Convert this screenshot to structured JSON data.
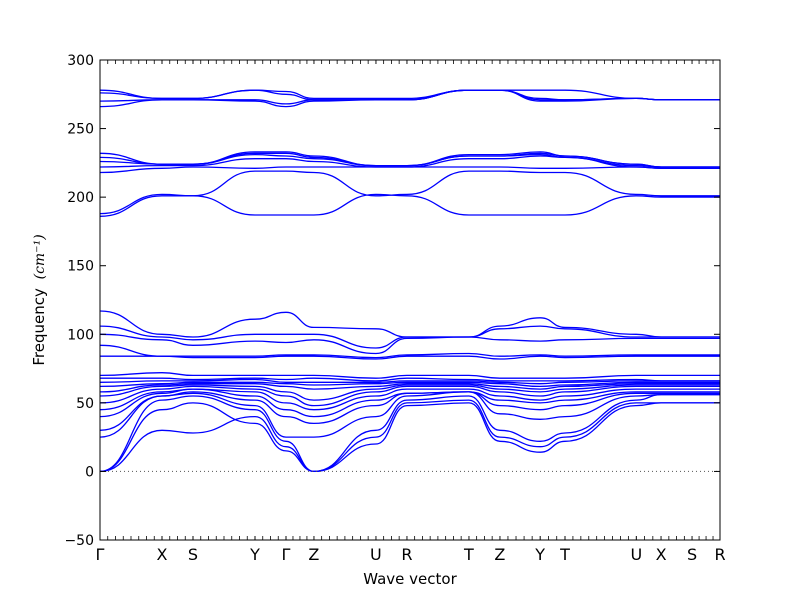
{
  "chart_data": {
    "type": "line",
    "title": "",
    "xlabel": "Wave vector",
    "ylabel": "Frequency",
    "ylabel_unit": "(cm⁻¹)",
    "ylim": [
      -50,
      300
    ],
    "yticks": [
      -50,
      0,
      50,
      100,
      150,
      200,
      250,
      300
    ],
    "grid": false,
    "legend": "none",
    "zero_line": {
      "y": 0,
      "style": "dotted"
    },
    "line_color": "#0000ff",
    "high_symmetry_points": [
      {
        "label": "Γ",
        "x": 0.0
      },
      {
        "label": "X",
        "x": 0.1
      },
      {
        "label": "S",
        "x": 0.15
      },
      {
        "label": "Y",
        "x": 0.25
      },
      {
        "label": "Γ",
        "x": 0.3
      },
      {
        "label": "Z",
        "x": 0.345
      },
      {
        "label": "U",
        "x": 0.445
      },
      {
        "label": "R",
        "x": 0.495
      },
      {
        "label": "T",
        "x": 0.595
      },
      {
        "label": "Z",
        "x": 0.645
      },
      {
        "label": "Y",
        "x": 0.71
      },
      {
        "label": "T",
        "x": 0.75
      },
      {
        "label": "U",
        "x": 0.865
      },
      {
        "label": "X",
        "x": 0.905
      },
      {
        "label": "S",
        "x": 0.955
      },
      {
        "label": "R",
        "x": 1.0
      }
    ],
    "series": [
      {
        "values": [
          0,
          30,
          28,
          40,
          18,
          0,
          20,
          48,
          50,
          22,
          14,
          22,
          48,
          50,
          50,
          50
        ]
      },
      {
        "values": [
          0,
          45,
          50,
          35,
          15,
          0,
          25,
          50,
          52,
          25,
          18,
          25,
          50,
          50,
          50,
          50
        ]
      },
      {
        "values": [
          0,
          52,
          55,
          45,
          22,
          0,
          30,
          52,
          55,
          30,
          22,
          28,
          52,
          56,
          56,
          56
        ]
      },
      {
        "values": [
          25,
          55,
          57,
          48,
          25,
          25,
          40,
          55,
          58,
          42,
          38,
          40,
          55,
          56,
          56,
          56
        ]
      },
      {
        "values": [
          30,
          55,
          58,
          52,
          40,
          35,
          48,
          57,
          58,
          48,
          45,
          48,
          57,
          57,
          57,
          57
        ]
      },
      {
        "values": [
          40,
          57,
          60,
          55,
          45,
          40,
          52,
          57,
          58,
          52,
          50,
          52,
          58,
          58,
          58,
          58
        ]
      },
      {
        "values": [
          45,
          58,
          60,
          58,
          50,
          45,
          55,
          60,
          60,
          55,
          52,
          55,
          60,
          60,
          60,
          60
        ]
      },
      {
        "values": [
          50,
          60,
          62,
          60,
          55,
          48,
          58,
          62,
          62,
          58,
          55,
          58,
          62,
          62,
          62,
          62
        ]
      },
      {
        "values": [
          55,
          62,
          63,
          62,
          58,
          52,
          60,
          63,
          63,
          60,
          58,
          60,
          63,
          63,
          63,
          63
        ]
      },
      {
        "values": [
          58,
          63,
          64,
          64,
          62,
          60,
          62,
          64,
          64,
          62,
          60,
          62,
          64,
          64,
          64,
          64
        ]
      },
      {
        "values": [
          62,
          64,
          65,
          65,
          64,
          63,
          64,
          65,
          65,
          64,
          62,
          63,
          65,
          65,
          65,
          65
        ]
      },
      {
        "values": [
          65,
          66,
          66,
          67,
          65,
          65,
          65,
          66,
          66,
          65,
          64,
          65,
          66,
          66,
          66,
          66
        ]
      },
      {
        "values": [
          68,
          68,
          67,
          68,
          67,
          68,
          66,
          68,
          67,
          66,
          66,
          66,
          67,
          66,
          66,
          66
        ]
      },
      {
        "values": [
          70,
          72,
          70,
          70,
          70,
          70,
          68,
          70,
          70,
          68,
          68,
          68,
          70,
          70,
          70,
          70
        ]
      },
      {
        "values": [
          84,
          84,
          83,
          83,
          84,
          84,
          82,
          84,
          84,
          82,
          84,
          83,
          84,
          84,
          84,
          84
        ]
      },
      {
        "values": [
          92,
          84,
          84,
          84,
          85,
          85,
          83,
          85,
          86,
          84,
          85,
          84,
          85,
          85,
          85,
          85
        ]
      },
      {
        "values": [
          100,
          96,
          92,
          95,
          94,
          96,
          86,
          97,
          98,
          96,
          95,
          96,
          97,
          97,
          97,
          97
        ]
      },
      {
        "values": [
          106,
          98,
          96,
          100,
          100,
          100,
          90,
          98,
          98,
          104,
          106,
          104,
          98,
          98,
          98,
          98
        ]
      },
      {
        "values": [
          117,
          100,
          98,
          111,
          116,
          105,
          104,
          98,
          98,
          106,
          112,
          105,
          100,
          98,
          98,
          98
        ]
      },
      {
        "values": [
          186,
          201,
          201,
          187,
          187,
          187,
          202,
          201,
          187,
          187,
          187,
          187,
          201,
          200,
          200,
          200
        ]
      },
      {
        "values": [
          188,
          202,
          201,
          219,
          219,
          218,
          201,
          202,
          219,
          219,
          218,
          218,
          202,
          201,
          201,
          201
        ]
      },
      {
        "values": [
          218,
          221,
          222,
          221,
          222,
          222,
          222,
          222,
          222,
          222,
          221,
          221,
          222,
          221,
          221,
          221
        ]
      },
      {
        "values": [
          222,
          223,
          223,
          228,
          228,
          226,
          222,
          222,
          228,
          228,
          230,
          229,
          222,
          221,
          221,
          221
        ]
      },
      {
        "values": [
          226,
          224,
          224,
          231,
          230,
          228,
          223,
          223,
          230,
          230,
          231,
          229,
          223,
          222,
          222,
          222
        ]
      },
      {
        "values": [
          229,
          224,
          224,
          232,
          232,
          229,
          223,
          223,
          230,
          230,
          232,
          230,
          224,
          222,
          222,
          222
        ]
      },
      {
        "values": [
          232,
          224,
          224,
          233,
          233,
          230,
          223,
          223,
          231,
          231,
          233,
          230,
          224,
          222,
          222,
          222
        ]
      },
      {
        "values": [
          266,
          271,
          271,
          270,
          266,
          270,
          271,
          271,
          278,
          278,
          270,
          270,
          272,
          271,
          271,
          271
        ]
      },
      {
        "values": [
          270,
          271,
          271,
          271,
          268,
          271,
          271,
          271,
          278,
          278,
          271,
          271,
          272,
          271,
          271,
          271
        ]
      },
      {
        "values": [
          276,
          272,
          272,
          278,
          275,
          271,
          271,
          271,
          278,
          278,
          272,
          271,
          272,
          271,
          271,
          271
        ]
      },
      {
        "values": [
          278,
          272,
          272,
          278,
          277,
          272,
          272,
          272,
          278,
          278,
          278,
          278,
          272,
          271,
          271,
          271
        ]
      }
    ]
  }
}
